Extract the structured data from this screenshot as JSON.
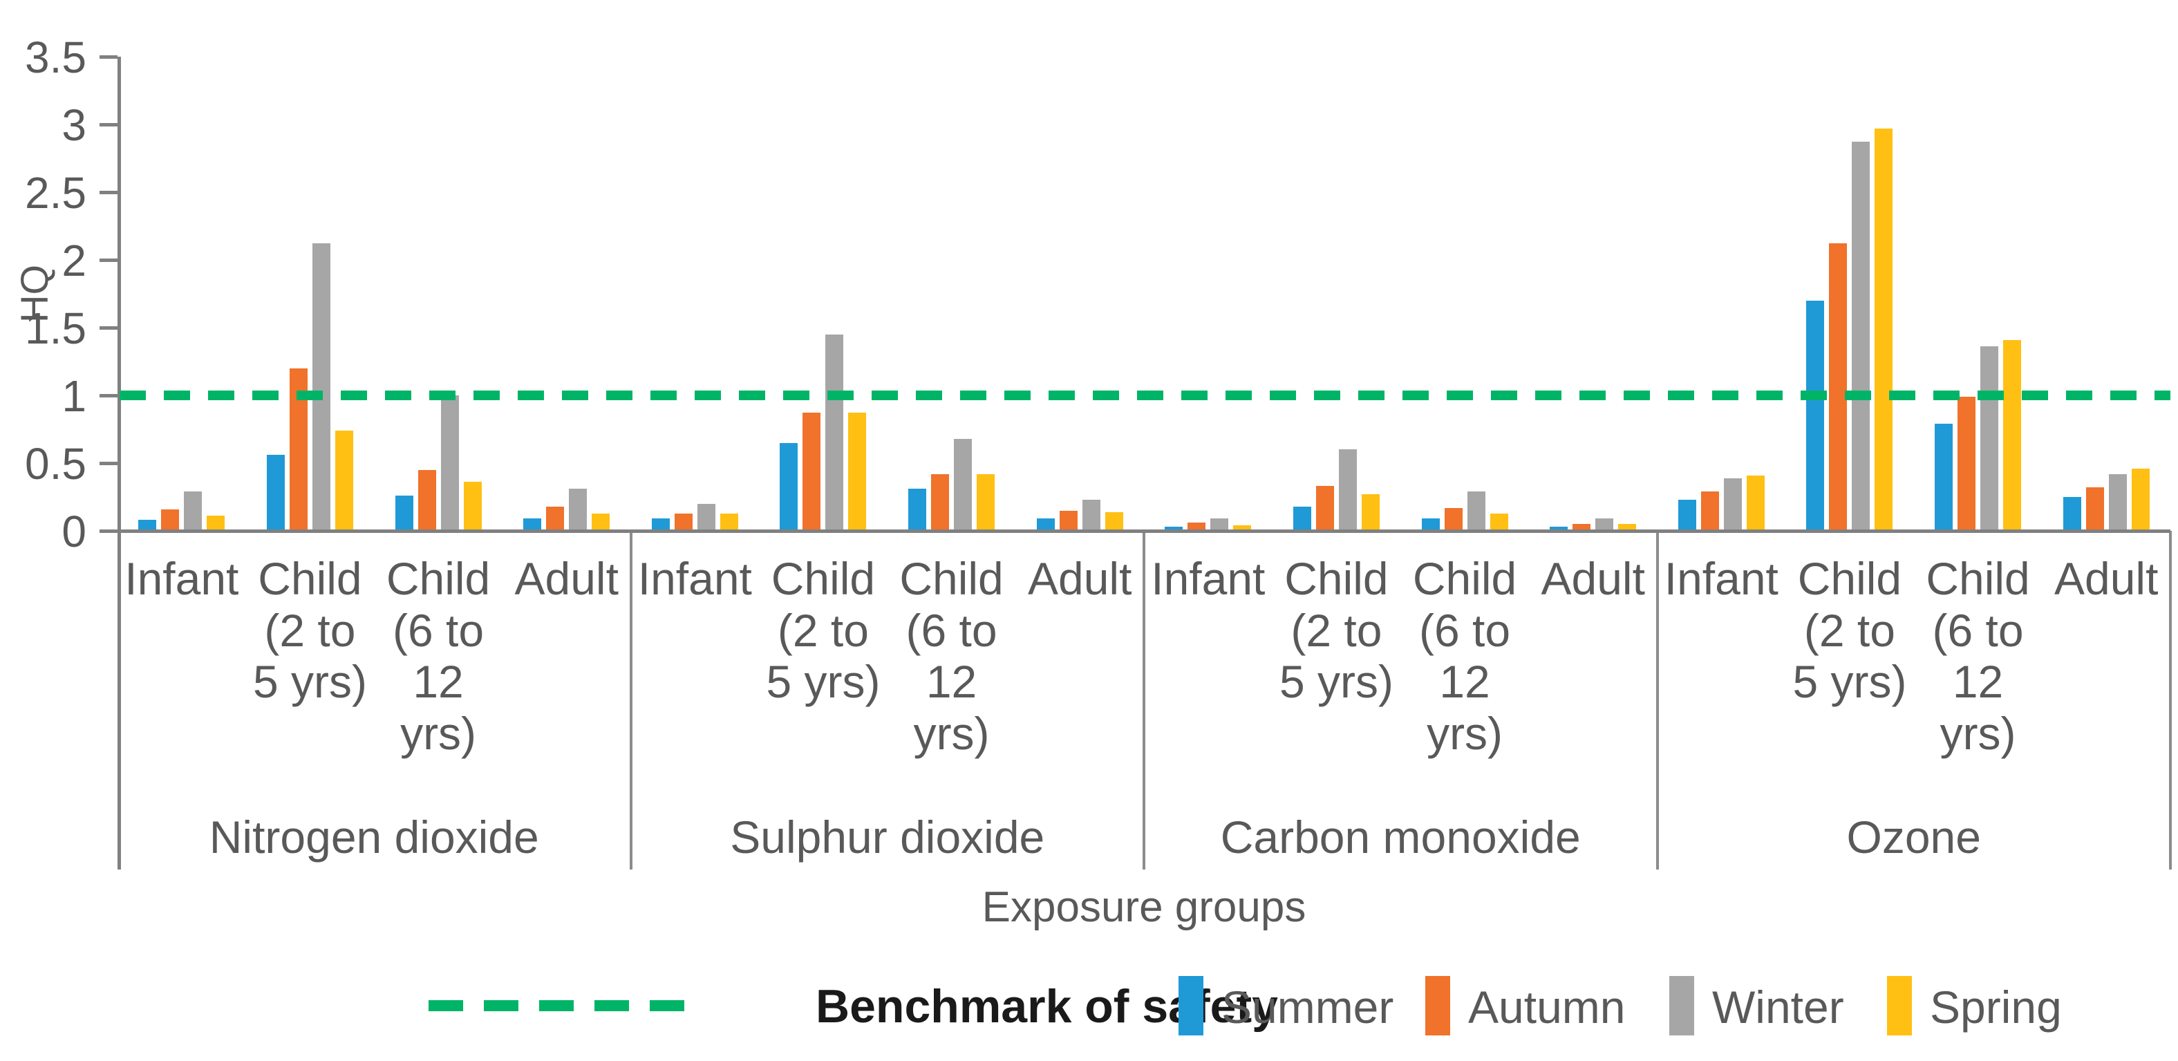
{
  "page": {
    "background": "#ffffff"
  },
  "chart_data": {
    "type": "bar",
    "title": "",
    "ylabel": "HQ",
    "xlabel": "Exposure groups",
    "ylim": [
      0,
      3.5
    ],
    "yticks": [
      0,
      0.5,
      1,
      1.5,
      2,
      2.5,
      3,
      3.5
    ],
    "grid": "off",
    "legend_position": "bottom",
    "benchmark": {
      "label": "Benchmark of safety",
      "value": 1,
      "color": "#00B467",
      "style": "dashed"
    },
    "groups": [
      "Nitrogen dioxide",
      "Sulphur dioxide",
      "Carbon monoxide",
      "Ozone"
    ],
    "category_labels": [
      "Infant",
      "Child\n(2 to\n5 yrs)",
      "Child\n(6 to\n12\nyrs)",
      "Adult"
    ],
    "series": [
      {
        "name": "Summer",
        "color": "#1F9AD7",
        "values": [
          [
            0.08,
            0.56,
            0.26,
            0.09
          ],
          [
            0.09,
            0.65,
            0.31,
            0.09
          ],
          [
            0.03,
            0.18,
            0.09,
            0.03
          ],
          [
            0.23,
            1.7,
            0.79,
            0.25
          ]
        ]
      },
      {
        "name": "Autumn",
        "color": "#F0722B",
        "values": [
          [
            0.16,
            1.2,
            0.45,
            0.18
          ],
          [
            0.13,
            0.87,
            0.42,
            0.15
          ],
          [
            0.06,
            0.33,
            0.17,
            0.05
          ],
          [
            0.29,
            2.12,
            0.99,
            0.32
          ]
        ]
      },
      {
        "name": "Winter",
        "color": "#A6A6A6",
        "values": [
          [
            0.29,
            2.12,
            1.0,
            0.31
          ],
          [
            0.2,
            1.45,
            0.68,
            0.23
          ],
          [
            0.09,
            0.6,
            0.29,
            0.09
          ],
          [
            0.39,
            2.87,
            1.36,
            0.42
          ]
        ]
      },
      {
        "name": "Spring",
        "color": "#FFC013",
        "values": [
          [
            0.11,
            0.74,
            0.36,
            0.13
          ],
          [
            0.13,
            0.87,
            0.42,
            0.14
          ],
          [
            0.04,
            0.27,
            0.13,
            0.05
          ],
          [
            0.41,
            2.97,
            1.41,
            0.46
          ]
        ]
      }
    ]
  }
}
